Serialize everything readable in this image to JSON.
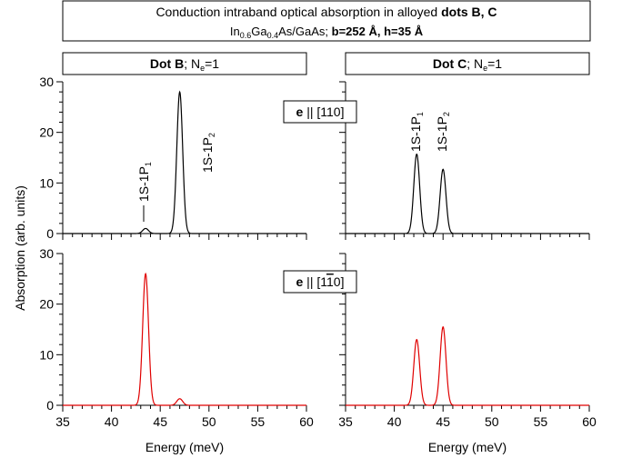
{
  "title": {
    "line1_prefix": "Conduction intraband optical absorption in alloyed ",
    "line1_bold": "dots B, C",
    "line2_in": "In",
    "line2_in_sub": "0.6",
    "line2_ga": "Ga",
    "line2_ga_sub": "0.4",
    "line2_rest": "As/GaAs; ",
    "line2_bold": "b=252 Å, h=35 Å"
  },
  "panel_headers": {
    "dot_b": {
      "bold": "Dot B",
      "rest": "; N",
      "sub": "e",
      "tail": "=1"
    },
    "dot_c": {
      "bold": "Dot C",
      "rest": "; N",
      "sub": "e",
      "tail": "=1"
    }
  },
  "polarizations": {
    "top": {
      "bold": "e",
      "rest": " || [110]"
    },
    "bottom": {
      "bold": "e",
      "rest": " || [1",
      "bar": "1",
      "tail": "0]"
    }
  },
  "axes": {
    "ylabel": "Absorption (arb. units)",
    "xlabel": "Energy (meV)",
    "x_ticks": [
      "35",
      "40",
      "45",
      "50",
      "55",
      "60"
    ],
    "y_ticks": [
      "0",
      "10",
      "20",
      "30"
    ]
  },
  "annotations": {
    "dot_b_p1": {
      "base": "1S-1P",
      "sub": "1"
    },
    "dot_b_p2": {
      "base": "1S-1P",
      "sub": "2"
    },
    "dot_c_p1": {
      "base": "1S-1P",
      "sub": "1"
    },
    "dot_c_p2": {
      "base": "1S-1P",
      "sub": "2"
    }
  },
  "colors": {
    "top_series": "#000000",
    "bottom_series": "#e00000"
  },
  "chart_data": [
    {
      "type": "line",
      "panel": "Dot B, e || [110]",
      "xlim": [
        35,
        60
      ],
      "ylim": [
        0,
        30
      ],
      "grid": false,
      "peaks": [
        {
          "center": 43.5,
          "height": 1.0,
          "width": 0.3
        },
        {
          "center": 47.0,
          "height": 28.0,
          "width": 0.3
        }
      ]
    },
    {
      "type": "line",
      "panel": "Dot C, e || [110]",
      "xlim": [
        35,
        60
      ],
      "ylim": [
        0,
        30
      ],
      "grid": false,
      "peaks": [
        {
          "center": 42.3,
          "height": 15.7,
          "width": 0.3
        },
        {
          "center": 45.0,
          "height": 12.7,
          "width": 0.3
        }
      ]
    },
    {
      "type": "line",
      "panel": "Dot B, e || [1-10]",
      "xlim": [
        35,
        60
      ],
      "ylim": [
        0,
        30
      ],
      "grid": false,
      "peaks": [
        {
          "center": 43.5,
          "height": 26.0,
          "width": 0.3
        },
        {
          "center": 47.0,
          "height": 1.3,
          "width": 0.3
        }
      ]
    },
    {
      "type": "line",
      "panel": "Dot C, e || [1-10]",
      "xlim": [
        35,
        60
      ],
      "ylim": [
        0,
        30
      ],
      "grid": false,
      "peaks": [
        {
          "center": 42.3,
          "height": 13.0,
          "width": 0.3
        },
        {
          "center": 45.0,
          "height": 15.5,
          "width": 0.3
        }
      ]
    }
  ]
}
